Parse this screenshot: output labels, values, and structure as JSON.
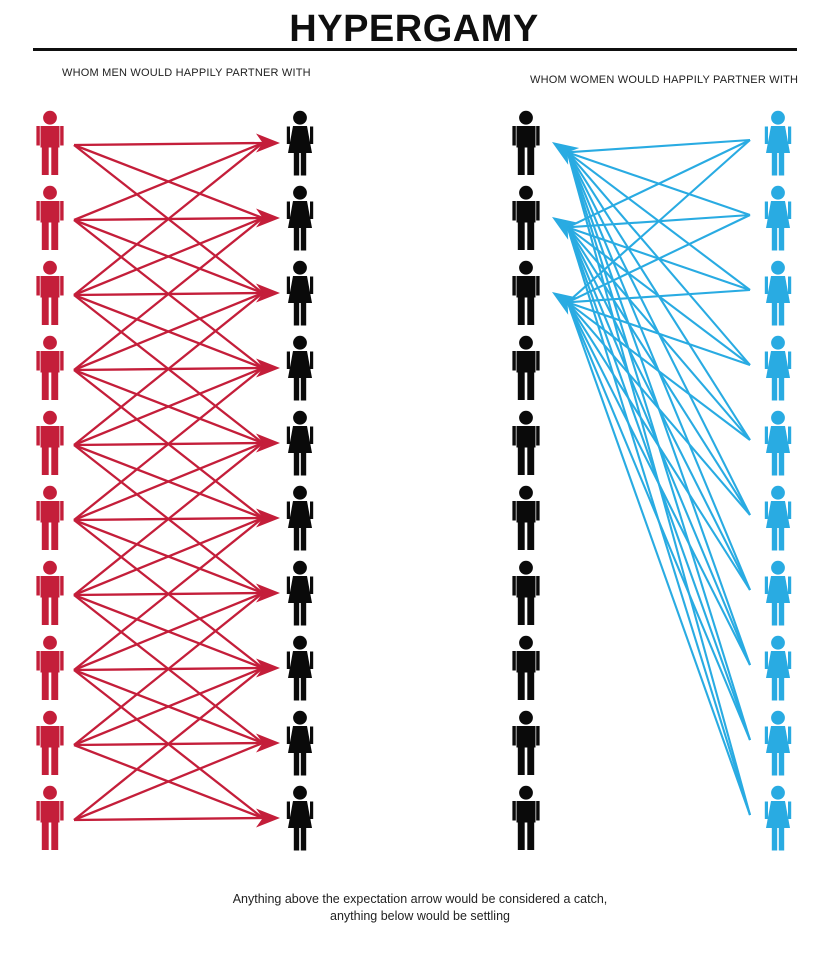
{
  "title": "HYPERGAMY",
  "caption": {
    "line1": "Anything above the expectation arrow would be considered a catch,",
    "line2": "anything below would be settling"
  },
  "colors": {
    "red": "#C41E3A",
    "blue": "#29ABE2",
    "black": "#0a0a0a",
    "rule": "#0f0f0f"
  },
  "diagram": {
    "row_count": 10,
    "left": {
      "subtitle": "WHOM MEN WOULD HAPPILY PARTNER WITH",
      "left_column": {
        "figure": "man",
        "color_key": "red",
        "count": 10
      },
      "right_column": {
        "figure": "woman",
        "color_key": "black",
        "count": 10
      },
      "arrow_color_key": "red",
      "edges": [
        {
          "from": 1,
          "to": [
            1,
            2,
            3
          ]
        },
        {
          "from": 2,
          "to": [
            1,
            2,
            3,
            4
          ]
        },
        {
          "from": 3,
          "to": [
            1,
            2,
            3,
            4,
            5
          ]
        },
        {
          "from": 4,
          "to": [
            2,
            3,
            4,
            5,
            6
          ]
        },
        {
          "from": 5,
          "to": [
            3,
            4,
            5,
            6,
            7
          ]
        },
        {
          "from": 6,
          "to": [
            4,
            5,
            6,
            7,
            8
          ]
        },
        {
          "from": 7,
          "to": [
            5,
            6,
            7,
            8,
            9
          ]
        },
        {
          "from": 8,
          "to": [
            6,
            7,
            8,
            9,
            10
          ]
        },
        {
          "from": 9,
          "to": [
            7,
            8,
            9,
            10
          ]
        },
        {
          "from": 10,
          "to": [
            8,
            9,
            10
          ]
        }
      ]
    },
    "right": {
      "subtitle": "WHOM WOMEN WOULD HAPPILY PARTNER WITH",
      "left_column": {
        "figure": "man",
        "color_key": "black",
        "count": 10
      },
      "right_column": {
        "figure": "woman",
        "color_key": "blue",
        "count": 10
      },
      "arrow_color_key": "blue",
      "edges": [
        {
          "from": 1,
          "to": [
            1,
            2,
            3
          ]
        },
        {
          "from": 2,
          "to": [
            1,
            2,
            3
          ]
        },
        {
          "from": 3,
          "to": [
            1,
            2,
            3
          ]
        },
        {
          "from": 4,
          "to": [
            1,
            2,
            3
          ]
        },
        {
          "from": 5,
          "to": [
            1,
            2,
            3
          ]
        },
        {
          "from": 6,
          "to": [
            1,
            2,
            3
          ]
        },
        {
          "from": 7,
          "to": [
            1,
            2,
            3
          ]
        },
        {
          "from": 8,
          "to": [
            1,
            2,
            3
          ]
        },
        {
          "from": 9,
          "to": [
            1,
            2,
            3
          ]
        },
        {
          "from": 10,
          "to": [
            1,
            2,
            3
          ]
        }
      ]
    }
  }
}
